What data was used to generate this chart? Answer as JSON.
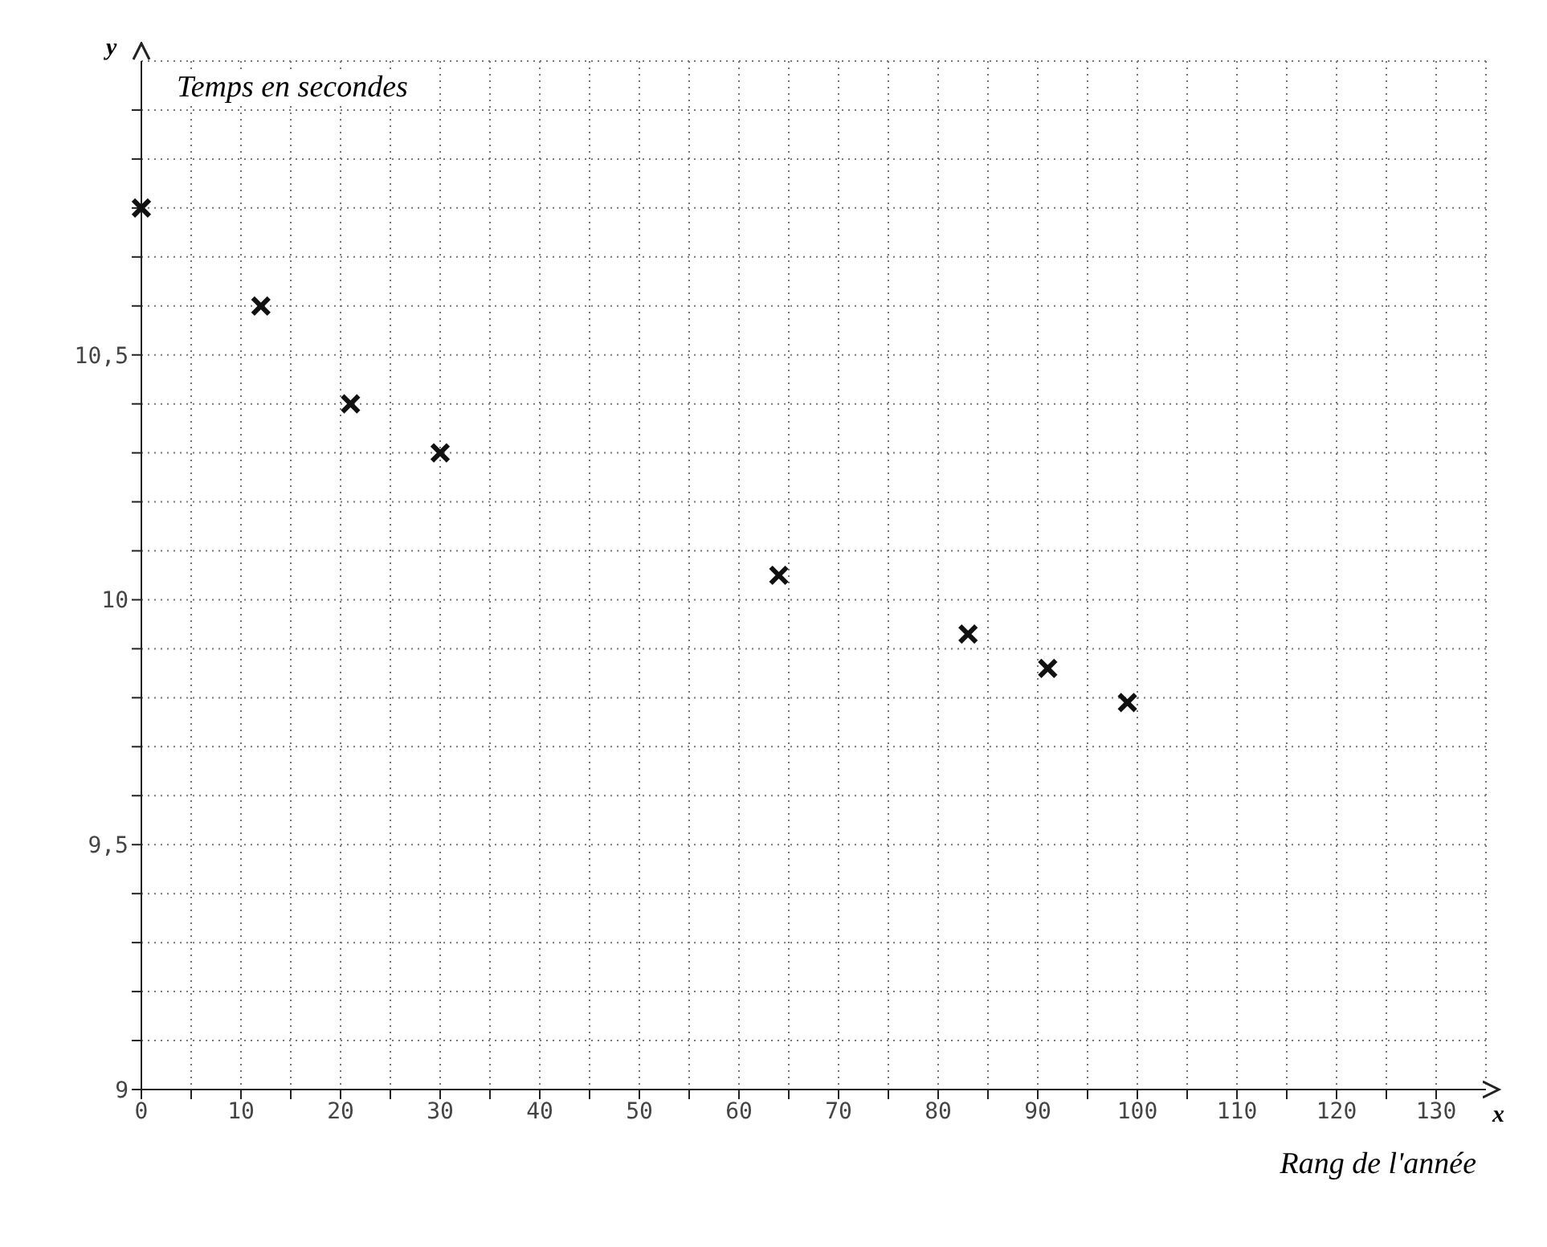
{
  "chart_data": {
    "type": "scatter",
    "xlabel": "Rang de l'année",
    "ylabel": "Temps en secondes",
    "annotations": [
      "x",
      "y"
    ],
    "x": [
      0,
      12,
      21,
      30,
      64,
      83,
      91,
      99
    ],
    "series": [
      {
        "color": "#111111",
        "values": [
          10.8,
          10.6,
          10.4,
          10.3,
          10.05,
          9.93,
          9.86,
          9.79
        ]
      }
    ],
    "marker": "cross",
    "grid": true,
    "legend": false,
    "xlim": [
      0,
      135
    ],
    "xticks": [
      0,
      {
        "value": 5,
        "label": null
      },
      10,
      {
        "value": 15,
        "label": null
      },
      20,
      {
        "value": 25,
        "label": null
      },
      30,
      {
        "value": 35,
        "label": null
      },
      40,
      {
        "value": 45,
        "label": null
      },
      50,
      {
        "value": 55,
        "label": null
      },
      60,
      {
        "value": 65,
        "label": null
      },
      70,
      {
        "value": 75,
        "label": null
      },
      80,
      {
        "value": 85,
        "label": null
      },
      90,
      {
        "value": 95,
        "label": null
      },
      100,
      {
        "value": 105,
        "label": null
      },
      110,
      {
        "value": 115,
        "label": null
      },
      120,
      {
        "value": 125,
        "label": null
      },
      130
    ],
    "ylim": [
      9,
      11.1
    ],
    "yticks": [
      {
        "value": 9,
        "label": "9"
      },
      {
        "value": 9.1,
        "label": null
      },
      {
        "value": 9.2,
        "label": null
      },
      {
        "value": 9.3,
        "label": null
      },
      {
        "value": 9.4,
        "label": null
      },
      {
        "value": 9.5,
        "label": "9,5"
      },
      {
        "value": 9.6,
        "label": null
      },
      {
        "value": 9.7,
        "label": null
      },
      {
        "value": 9.8,
        "label": null
      },
      {
        "value": 9.9,
        "label": null
      },
      {
        "value": 10,
        "label": "10"
      },
      {
        "value": 10.1,
        "label": null
      },
      {
        "value": 10.2,
        "label": null
      },
      {
        "value": 10.3,
        "label": null
      },
      {
        "value": 10.4,
        "label": null
      },
      {
        "value": 10.5,
        "label": "10,5"
      },
      {
        "value": 10.6,
        "label": null
      },
      {
        "value": 10.7,
        "label": null
      },
      {
        "value": 10.8,
        "label": null
      },
      {
        "value": 10.9,
        "label": null
      },
      {
        "value": 11,
        "label": null
      }
    ]
  }
}
